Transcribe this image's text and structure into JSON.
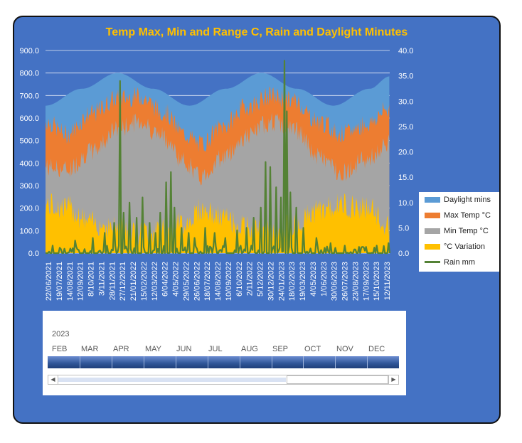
{
  "colors": {
    "background": "#4472c4",
    "title": "#ffc000",
    "daylight": "#5b9bd5",
    "max_temp": "#ed7d31",
    "min_temp": "#a5a5a5",
    "variation": "#ffc000",
    "rain": "#548235"
  },
  "chart_data": {
    "type": "area",
    "title": "Temp Max, Min and Range C, Rain and Daylight Minutes",
    "left_axis": {
      "ylim": [
        0,
        900
      ],
      "ticks": [
        "0.0",
        "100.0",
        "200.0",
        "300.0",
        "400.0",
        "500.0",
        "600.0",
        "700.0",
        "800.0",
        "900.0"
      ]
    },
    "right_axis": {
      "ylim": [
        0,
        40
      ],
      "ticks": [
        "0.0",
        "5.0",
        "10.0",
        "15.0",
        "20.0",
        "25.0",
        "30.0",
        "35.0",
        "40.0"
      ]
    },
    "x_range": [
      "2021-06-22",
      "2023-11-12"
    ],
    "x_ticks": [
      "22/06/2021",
      "19/07/2021",
      "14/08/2021",
      "12/09/2021",
      "8/10/2021",
      "3/11/2021",
      "28/11/2021",
      "27/12/2021",
      "21/01/2022",
      "15/02/2022",
      "12/03/2022",
      "6/04/2022",
      "4/05/2022",
      "29/05/2022",
      "26/06/2022",
      "18/07/2022",
      "14/08/2022",
      "10/09/2022",
      "6/10/2022",
      "2/11/2022",
      "5/12/2022",
      "30/12/2022",
      "24/01/2023",
      "18/02/2023",
      "19/03/2023",
      "4/05/2023",
      "1/06/2023",
      "30/06/2023",
      "26/07/2023",
      "23/08/2023",
      "17/09/2023",
      "15/10/2023",
      "12/11/2023"
    ],
    "grid": true,
    "legend_position": "right",
    "series": [
      {
        "name": "Daylight mins",
        "axis": "left",
        "kind": "area",
        "note_min": 655,
        "note_max": 800
      },
      {
        "name": "Max Temp °C",
        "axis": "right",
        "kind": "area"
      },
      {
        "name": "Min Temp °C",
        "axis": "right",
        "kind": "area"
      },
      {
        "name": "°C Variation",
        "axis": "right",
        "kind": "area"
      },
      {
        "name": "Rain mm",
        "axis": "right",
        "kind": "line"
      }
    ],
    "daylight_samples": [
      [
        "2021-06-22",
        655
      ],
      [
        "2021-09-22",
        730
      ],
      [
        "2021-12-22",
        800
      ],
      [
        "2022-03-22",
        730
      ],
      [
        "2022-06-22",
        655
      ],
      [
        "2022-09-22",
        730
      ],
      [
        "2022-12-22",
        800
      ],
      [
        "2023-03-22",
        730
      ],
      [
        "2023-06-22",
        655
      ],
      [
        "2023-09-22",
        730
      ],
      [
        "2023-11-12",
        785
      ]
    ],
    "max_temp_samples": [
      [
        "2021-06-22",
        26
      ],
      [
        "2021-08-15",
        23.5
      ],
      [
        "2021-10-15",
        27.5
      ],
      [
        "2021-12-22",
        30.5
      ],
      [
        "2022-02-15",
        31
      ],
      [
        "2022-04-15",
        28
      ],
      [
        "2022-06-10",
        23.5
      ],
      [
        "2022-07-20",
        21.5
      ],
      [
        "2022-09-15",
        25
      ],
      [
        "2022-11-15",
        29
      ],
      [
        "2023-01-15",
        31
      ],
      [
        "2023-03-15",
        30
      ],
      [
        "2023-05-15",
        26
      ],
      [
        "2023-07-15",
        23.5
      ],
      [
        "2023-09-15",
        25.5
      ],
      [
        "2023-11-12",
        28.5
      ]
    ],
    "min_temp_samples": [
      [
        "2021-06-22",
        17
      ],
      [
        "2021-08-15",
        16.5
      ],
      [
        "2021-10-15",
        20
      ],
      [
        "2021-12-22",
        24.5
      ],
      [
        "2022-02-15",
        26
      ],
      [
        "2022-04-15",
        23
      ],
      [
        "2022-06-10",
        18
      ],
      [
        "2022-07-20",
        15
      ],
      [
        "2022-09-15",
        19
      ],
      [
        "2022-11-15",
        23
      ],
      [
        "2023-01-15",
        26
      ],
      [
        "2023-03-15",
        24.5
      ],
      [
        "2023-05-15",
        19
      ],
      [
        "2023-07-15",
        16
      ],
      [
        "2023-09-15",
        18.5
      ],
      [
        "2023-11-12",
        21.5
      ]
    ],
    "variation_samples": [
      [
        "2021-06-22",
        9.5
      ],
      [
        "2021-08-15",
        9
      ],
      [
        "2021-10-15",
        6
      ],
      [
        "2021-12-22",
        5
      ],
      [
        "2022-02-15",
        4
      ],
      [
        "2022-04-15",
        4.5
      ],
      [
        "2022-06-10",
        6
      ],
      [
        "2022-07-20",
        8.5
      ],
      [
        "2022-09-15",
        7
      ],
      [
        "2022-11-15",
        5
      ],
      [
        "2023-01-15",
        4.5
      ],
      [
        "2023-03-15",
        5.5
      ],
      [
        "2023-05-15",
        8.5
      ],
      [
        "2023-07-15",
        9.5
      ],
      [
        "2023-09-15",
        9
      ],
      [
        "2023-11-12",
        5
      ]
    ],
    "rain_peaks": [
      [
        "2021-07-10",
        1.5
      ],
      [
        "2021-09-05",
        2.5
      ],
      [
        "2021-10-20",
        3
      ],
      [
        "2021-11-20",
        4
      ],
      [
        "2021-12-12",
        6
      ],
      [
        "2021-12-27",
        34
      ],
      [
        "2022-01-05",
        8
      ],
      [
        "2022-01-22",
        10
      ],
      [
        "2022-02-08",
        7
      ],
      [
        "2022-02-22",
        11
      ],
      [
        "2022-03-12",
        6
      ],
      [
        "2022-03-28",
        4
      ],
      [
        "2022-04-10",
        8
      ],
      [
        "2022-04-24",
        14
      ],
      [
        "2022-05-06",
        16
      ],
      [
        "2022-05-15",
        9
      ],
      [
        "2022-06-01",
        5
      ],
      [
        "2022-06-20",
        4
      ],
      [
        "2022-07-05",
        3
      ],
      [
        "2022-08-01",
        5
      ],
      [
        "2022-08-25",
        4
      ],
      [
        "2022-09-20",
        3
      ],
      [
        "2022-10-20",
        4.5
      ],
      [
        "2022-11-15",
        5
      ],
      [
        "2022-12-01",
        7
      ],
      [
        "2022-12-20",
        9
      ],
      [
        "2023-01-02",
        18
      ],
      [
        "2023-01-12",
        17
      ],
      [
        "2023-01-28",
        13
      ],
      [
        "2023-02-08",
        11
      ],
      [
        "2023-02-18",
        38
      ],
      [
        "2023-02-25",
        28
      ],
      [
        "2023-03-05",
        12
      ],
      [
        "2023-03-20",
        9
      ],
      [
        "2023-04-08",
        5
      ],
      [
        "2023-05-10",
        3
      ],
      [
        "2023-06-15",
        2
      ],
      [
        "2023-07-20",
        1.5
      ],
      [
        "2023-09-01",
        1
      ],
      [
        "2023-10-10",
        1.5
      ],
      [
        "2023-11-10",
        2
      ]
    ]
  },
  "legend": {
    "items": [
      {
        "label": "Daylight mins",
        "color": "#5b9bd5",
        "kind": "area"
      },
      {
        "label": "Max Temp °C",
        "color": "#ed7d31",
        "kind": "area"
      },
      {
        "label": "Min Temp °C",
        "color": "#a5a5a5",
        "kind": "area"
      },
      {
        "label": "°C Variation",
        "color": "#ffc000",
        "kind": "area"
      },
      {
        "label": "Rain mm",
        "color": "#548235",
        "kind": "line"
      }
    ]
  },
  "timeline": {
    "year": "2023",
    "months": [
      "FEB",
      "MAR",
      "APR",
      "MAY",
      "JUN",
      "JUL",
      "AUG",
      "SEP",
      "OCT",
      "NOV",
      "DEC"
    ],
    "scroll_left": "◀",
    "scroll_right": "▶"
  }
}
